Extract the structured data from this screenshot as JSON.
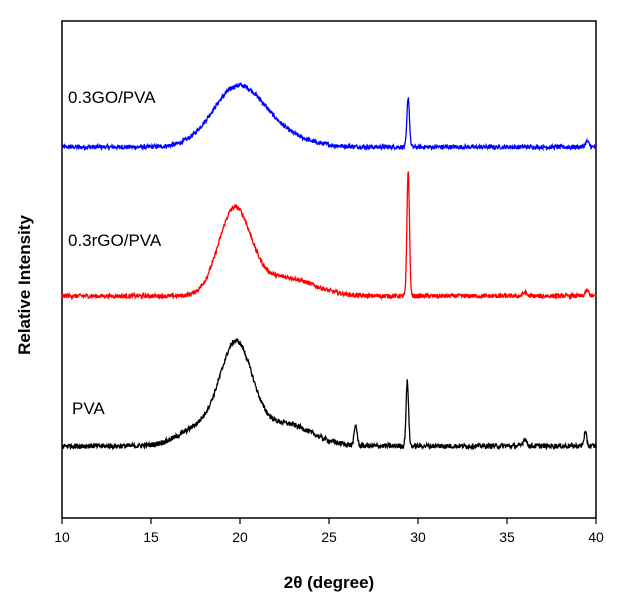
{
  "chart_data": {
    "type": "line",
    "xlabel": "2θ (degree)",
    "ylabel": "Relative Intensity",
    "xlim": [
      10,
      40
    ],
    "xticks": [
      10,
      15,
      20,
      25,
      30,
      35,
      40
    ],
    "grid": false,
    "legend": "none",
    "series": [
      {
        "name": "0.3GO/PVA",
        "color": "#0000ff",
        "offset": 2.0,
        "baseline": 0.0,
        "noise": 0.012,
        "peaks": [
          {
            "x": 19.8,
            "height": 0.28,
            "width": 1.4
          },
          {
            "x": 21.5,
            "height": 0.08,
            "width": 1.8
          },
          {
            "x": 29.45,
            "height": 0.27,
            "width": 0.07
          },
          {
            "x": 39.5,
            "height": 0.03,
            "width": 0.1
          }
        ]
      },
      {
        "name": "0.3rGO/PVA",
        "color": "#ff0000",
        "offset": 1.0,
        "baseline": 0.0,
        "noise": 0.012,
        "peaks": [
          {
            "x": 19.7,
            "height": 0.46,
            "width": 0.9
          },
          {
            "x": 22.5,
            "height": 0.1,
            "width": 1.6
          },
          {
            "x": 29.45,
            "height": 0.68,
            "width": 0.07
          },
          {
            "x": 36.0,
            "height": 0.02,
            "width": 0.1
          },
          {
            "x": 39.5,
            "height": 0.03,
            "width": 0.1
          }
        ]
      },
      {
        "name": "PVA",
        "color": "#000000",
        "offset": 0.0,
        "baseline": 0.0,
        "noise": 0.014,
        "peaks": [
          {
            "x": 17.8,
            "height": 0.1,
            "width": 1.2
          },
          {
            "x": 19.8,
            "height": 0.52,
            "width": 0.9
          },
          {
            "x": 22.5,
            "height": 0.12,
            "width": 1.5
          },
          {
            "x": 26.5,
            "height": 0.11,
            "width": 0.08
          },
          {
            "x": 29.4,
            "height": 0.35,
            "width": 0.07
          },
          {
            "x": 36.0,
            "height": 0.04,
            "width": 0.1
          },
          {
            "x": 39.4,
            "height": 0.07,
            "width": 0.08
          }
        ]
      }
    ]
  }
}
